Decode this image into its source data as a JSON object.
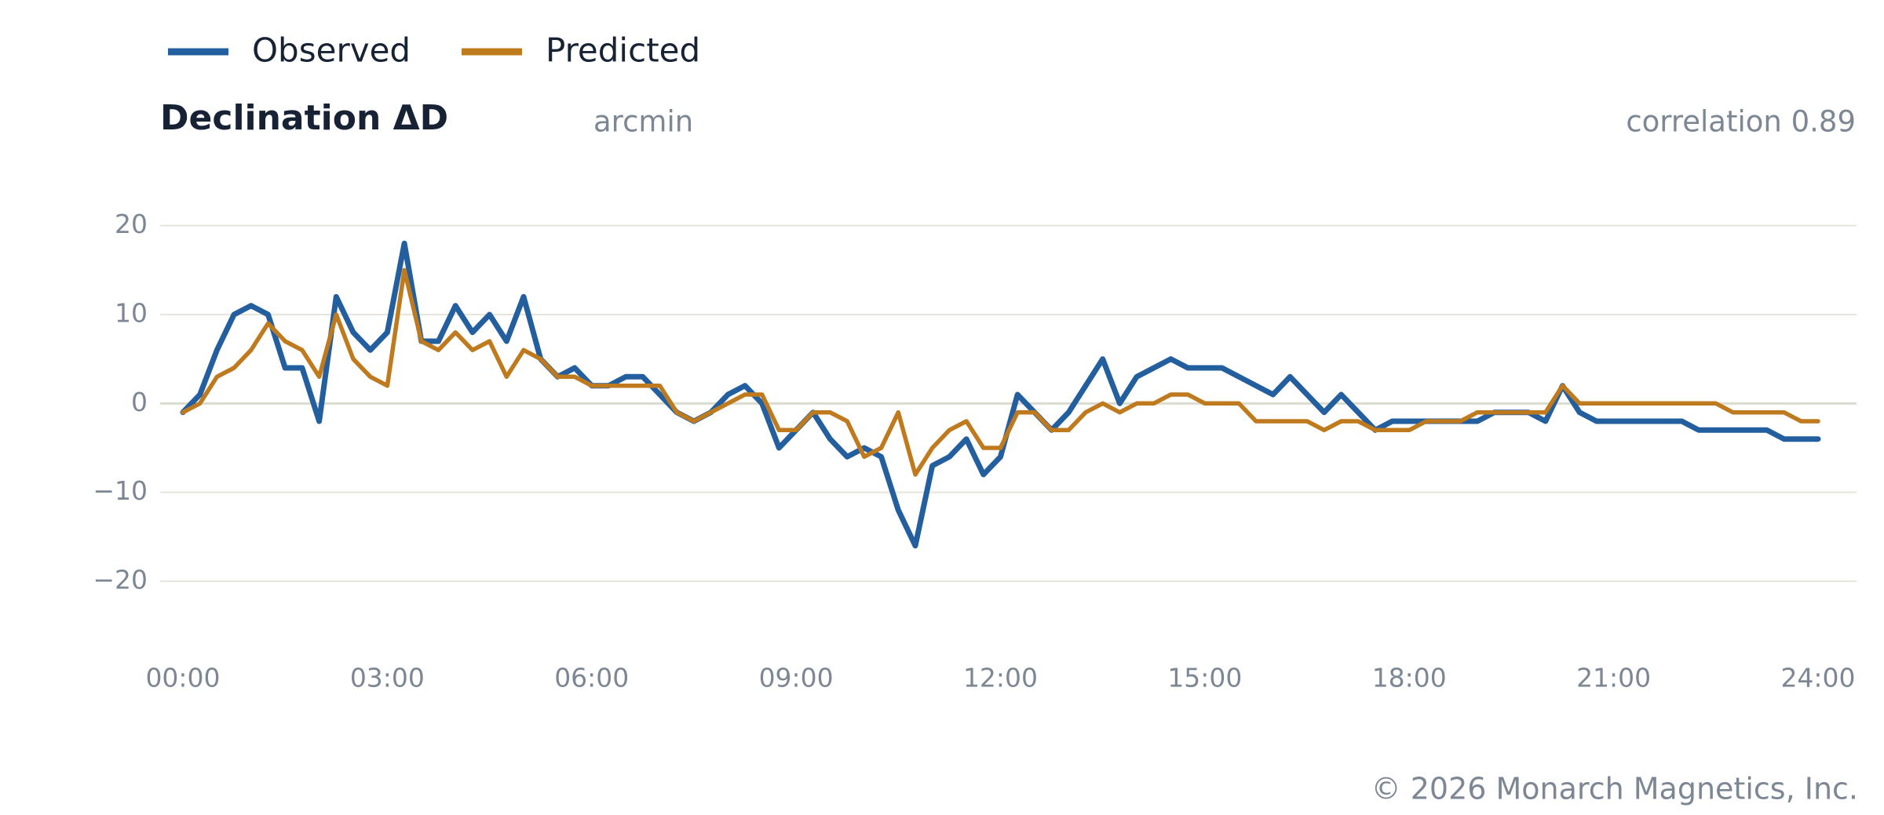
{
  "chart_data": {
    "type": "line",
    "title": "Declination  ΔD",
    "subtitle": "arcmin",
    "annotation": "correlation 0.89",
    "footer": "© 2026 Monarch Magnetics, Inc.",
    "x": [
      0,
      0.25,
      0.5,
      0.75,
      1,
      1.25,
      1.5,
      1.75,
      2,
      2.25,
      2.5,
      2.75,
      3,
      3.25,
      3.5,
      3.75,
      4,
      4.25,
      4.5,
      4.75,
      5,
      5.25,
      5.5,
      5.75,
      6,
      6.25,
      6.5,
      6.75,
      7,
      7.25,
      7.5,
      7.75,
      8,
      8.25,
      8.5,
      8.75,
      9,
      9.25,
      9.5,
      9.75,
      10,
      10.25,
      10.5,
      10.75,
      11,
      11.25,
      11.5,
      11.75,
      12,
      12.25,
      12.5,
      12.75,
      13,
      13.25,
      13.5,
      13.75,
      14,
      14.25,
      14.5,
      14.75,
      15,
      15.25,
      15.5,
      15.75,
      16,
      16.25,
      16.5,
      16.75,
      17,
      17.25,
      17.5,
      17.75,
      18,
      18.25,
      18.5,
      18.75,
      19,
      19.25,
      19.5,
      19.75,
      20,
      20.25,
      20.5,
      20.75,
      21,
      21.25,
      21.5,
      21.75,
      22,
      22.25,
      22.5,
      22.75,
      23,
      23.25,
      23.5,
      23.75,
      24
    ],
    "series": [
      {
        "name": "Observed",
        "color": "#235f9e",
        "values": [
          -1,
          1,
          6,
          10,
          11,
          10,
          4,
          4,
          -2,
          12,
          8,
          6,
          8,
          18,
          7,
          7,
          11,
          8,
          10,
          7,
          12,
          5,
          3,
          4,
          2,
          2,
          3,
          3,
          1,
          -1,
          -2,
          -1,
          1,
          2,
          0,
          -5,
          -3,
          -1,
          -4,
          -6,
          -5,
          -6,
          -12,
          -16,
          -7,
          -6,
          -4,
          -8,
          -6,
          1,
          -1,
          -3,
          -1,
          2,
          5,
          0,
          3,
          4,
          5,
          4,
          4,
          4,
          3,
          2,
          1,
          3,
          1,
          -1,
          1,
          -1,
          -3,
          -2,
          -2,
          -2,
          -2,
          -2,
          -2,
          -1,
          -1,
          -1,
          -2,
          2,
          -1,
          -2,
          -2,
          -2,
          -2,
          -2,
          -2,
          -3,
          -3,
          -3,
          -3,
          -3,
          -4,
          -4,
          -4
        ]
      },
      {
        "name": "Predicted",
        "color": "#c07a1e",
        "values": [
          -1,
          0,
          3,
          4,
          6,
          9,
          7,
          6,
          3,
          10,
          5,
          3,
          2,
          15,
          7,
          6,
          8,
          6,
          7,
          3,
          6,
          5,
          3,
          3,
          2,
          2,
          2,
          2,
          2,
          -1,
          -2,
          -1,
          0,
          1,
          1,
          -3,
          -3,
          -1,
          -1,
          -2,
          -6,
          -5,
          -1,
          -8,
          -5,
          -3,
          -2,
          -5,
          -5,
          -1,
          -1,
          -3,
          -3,
          -1,
          0,
          -1,
          0,
          0,
          1,
          1,
          0,
          0,
          0,
          -2,
          -2,
          -2,
          -2,
          -3,
          -2,
          -2,
          -3,
          -3,
          -3,
          -2,
          -2,
          -2,
          -1,
          -1,
          -1,
          -1,
          -1,
          2,
          0,
          0,
          0,
          0,
          0,
          0,
          0,
          0,
          0,
          -1,
          -1,
          -1,
          -1,
          -2,
          -2
        ]
      }
    ],
    "xlim": [
      0,
      24
    ],
    "xticks": [
      {
        "value": 0,
        "label": "00:00"
      },
      {
        "value": 3,
        "label": "03:00"
      },
      {
        "value": 6,
        "label": "06:00"
      },
      {
        "value": 9,
        "label": "09:00"
      },
      {
        "value": 12,
        "label": "12:00"
      },
      {
        "value": 15,
        "label": "15:00"
      },
      {
        "value": 18,
        "label": "18:00"
      },
      {
        "value": 21,
        "label": "21:00"
      },
      {
        "value": 24,
        "label": "24:00"
      }
    ],
    "ylim": [
      -26,
      22
    ],
    "yticks": [
      20,
      10,
      0,
      {
        "value": -10,
        "label": "−10"
      },
      {
        "value": -20,
        "label": "−20"
      }
    ],
    "grid": true,
    "legend": "top-left"
  }
}
